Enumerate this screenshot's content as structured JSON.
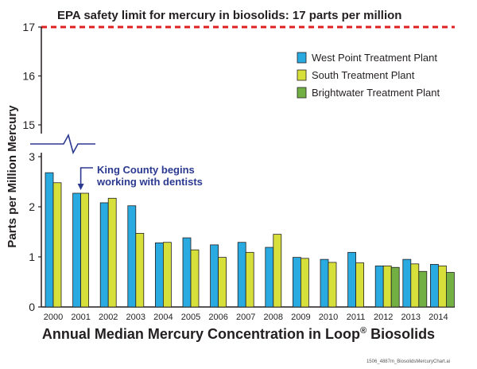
{
  "colors": {
    "west_point": "#29aae1",
    "south": "#d7e03a",
    "brightwater": "#72b043",
    "limit_line": "#e02020",
    "annotation": "#2b3990",
    "axis": "#231f20"
  },
  "limit_label": "EPA safety limit for mercury in biosolids: 17 parts per million",
  "annotation_label": [
    "King County begins",
    "working with dentists"
  ],
  "file_label": "1506_4887m_BiosolidsMercuryChart.ai",
  "chart_data": {
    "type": "bar",
    "title": "Annual Median Mercury Concentration in Loop",
    "title_superscript": "®",
    "title_suffix": " Biosolids",
    "ylabel": "Parts per Million Mercury",
    "xlabel": "",
    "axis_break": {
      "lower_range": [
        0,
        3
      ],
      "upper_range": [
        15,
        17
      ]
    },
    "yticks_lower": [
      "0",
      "1",
      "2",
      "3"
    ],
    "yticks_upper": [
      "15",
      "16",
      "17"
    ],
    "limit_value": 17,
    "grid": false,
    "legend_position": "top-right",
    "categories": [
      "2000",
      "2001",
      "2002",
      "2003",
      "2004",
      "2005",
      "2006",
      "2007",
      "2008",
      "2009",
      "2010",
      "2011",
      "2012",
      "2013",
      "2014"
    ],
    "series": [
      {
        "name": "West Point Treatment Plant",
        "color_key": "west_point",
        "values": [
          2.68,
          2.27,
          2.08,
          2.02,
          1.28,
          1.38,
          1.24,
          1.29,
          1.19,
          0.99,
          0.95,
          1.09,
          0.82,
          0.95,
          0.85
        ]
      },
      {
        "name": "South Treatment Plant",
        "color_key": "south",
        "values": [
          2.48,
          2.27,
          2.17,
          1.47,
          1.29,
          1.14,
          0.99,
          1.09,
          1.45,
          0.97,
          0.89,
          0.88,
          0.82,
          0.86,
          0.82
        ]
      },
      {
        "name": "Brightwater Treatment Plant",
        "color_key": "brightwater",
        "values": [
          null,
          null,
          null,
          null,
          null,
          null,
          null,
          null,
          null,
          null,
          null,
          null,
          0.79,
          0.71,
          0.69
        ]
      }
    ],
    "annotation": {
      "category": "2001",
      "pointer_value": 2.27
    }
  }
}
